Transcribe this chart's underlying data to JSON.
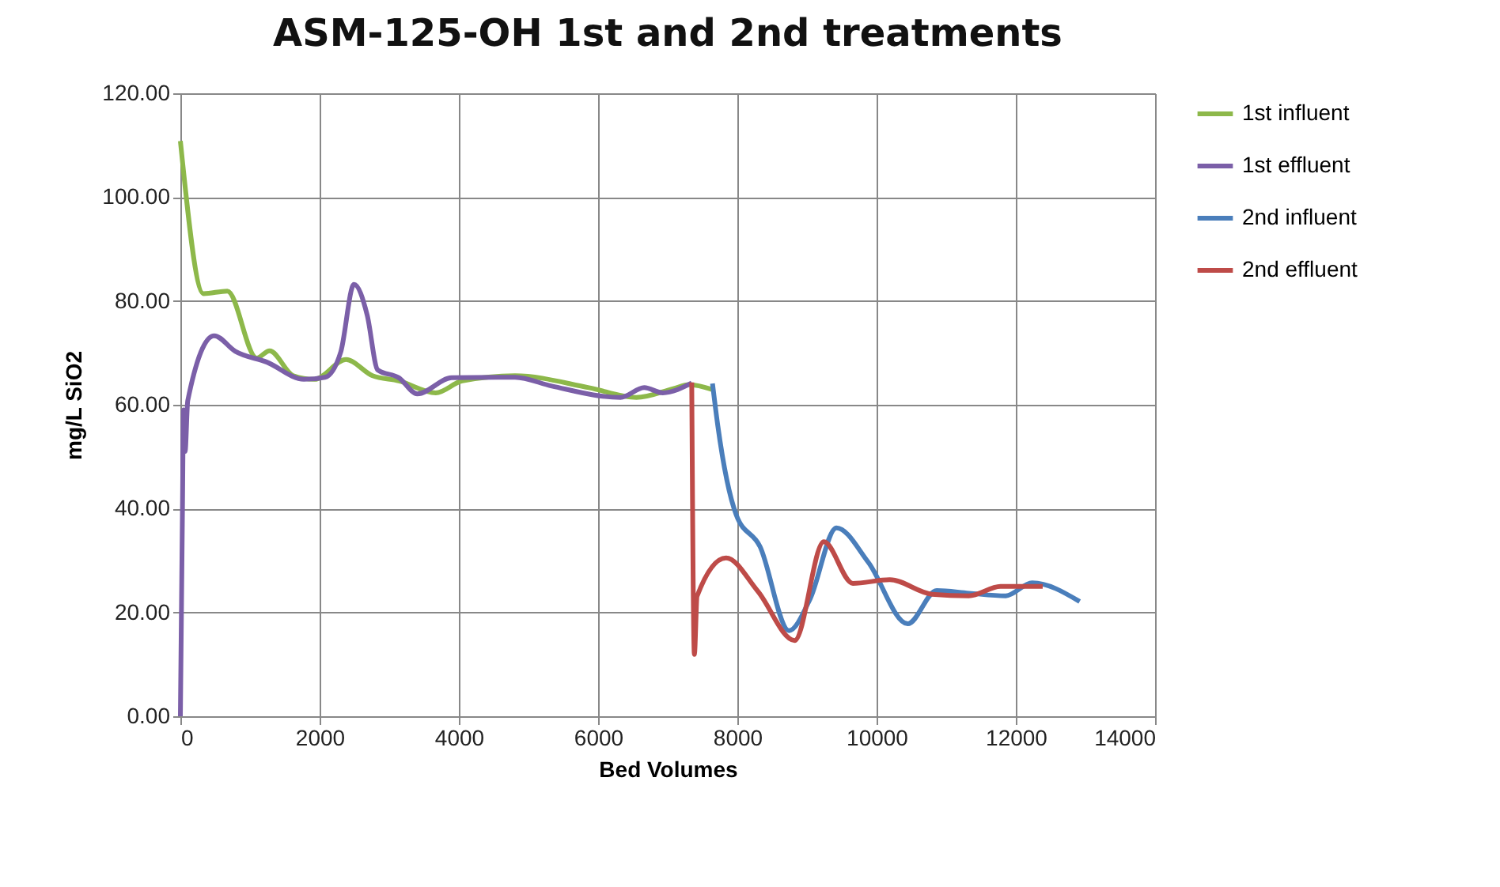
{
  "chart_data": {
    "type": "line",
    "title": "ASM-125-OH  1st and 2nd treatments",
    "xlabel": "Bed Volumes",
    "ylabel": "mg/L SiO2",
    "xlim": [
      0,
      14000
    ],
    "xticks": [
      0,
      2000,
      4000,
      6000,
      8000,
      10000,
      12000,
      14000
    ],
    "ylim": [
      0,
      120
    ],
    "yticks": [
      {
        "value": 0,
        "label": "0.00"
      },
      {
        "value": 20,
        "label": "20.00"
      },
      {
        "value": 40,
        "label": "40.00"
      },
      {
        "value": 60,
        "label": "60.00"
      },
      {
        "value": 80,
        "label": "80.00"
      },
      {
        "value": 100,
        "label": "100.00"
      },
      {
        "value": 120,
        "label": "120.00"
      }
    ],
    "grid": true,
    "legend": "right",
    "marker": "none",
    "line_style": "solid",
    "series": [
      {
        "name": "1st influent",
        "color": "#8db84a",
        "x": [
          0,
          333,
          675,
          1096,
          1281,
          1622,
          1925,
          2380,
          2760,
          3138,
          3669,
          4048,
          4806,
          5867,
          6550,
          7080,
          7307,
          7648
        ],
        "values": [
          110.8,
          81.4,
          81.9,
          69,
          70.4,
          65.6,
          64.9,
          68.7,
          65.6,
          64.6,
          62.3,
          64.6,
          65.6,
          63.3,
          61.4,
          63.1,
          63.9,
          62.9
        ]
      },
      {
        "name": "1st effluent",
        "color": "#7b5fa8",
        "x": [
          0,
          30,
          45,
          68,
          106,
          485,
          788,
          1243,
          1774,
          2077,
          2304,
          2494,
          2683,
          2835,
          3138,
          3403,
          3896,
          4806,
          5336,
          6322,
          6663,
          6929,
          7345
        ],
        "values": [
          0,
          40,
          59,
          51,
          60.8,
          73.3,
          70.3,
          68.2,
          64.9,
          65.3,
          70.2,
          83.2,
          77.3,
          66.7,
          65.2,
          62.1,
          65.2,
          65.3,
          63.6,
          61.4,
          63.3,
          62.3,
          64.2
        ]
      },
      {
        "name": "2nd influent",
        "color": "#4a7ebb",
        "x": [
          7643,
          7719,
          7984,
          8325,
          8742,
          9045,
          9424,
          9879,
          10447,
          10864,
          11325,
          11855,
          12235,
          12917
        ],
        "values": [
          64.1,
          56,
          38.8,
          32.7,
          16.5,
          22.6,
          36.3,
          29.7,
          17.8,
          24.2,
          23.7,
          23.2,
          25.7,
          22.1
        ]
      },
      {
        "name": "2nd effluent",
        "color": "#be4b48",
        "x": [
          7345,
          7383,
          7421,
          7838,
          8293,
          8823,
          9242,
          9659,
          10189,
          10795,
          11325,
          11780,
          12386
        ],
        "values": [
          64.3,
          11.9,
          23.1,
          30.5,
          24.1,
          14.6,
          33.6,
          25.6,
          26.3,
          23.5,
          23.2,
          25,
          25
        ]
      }
    ]
  }
}
